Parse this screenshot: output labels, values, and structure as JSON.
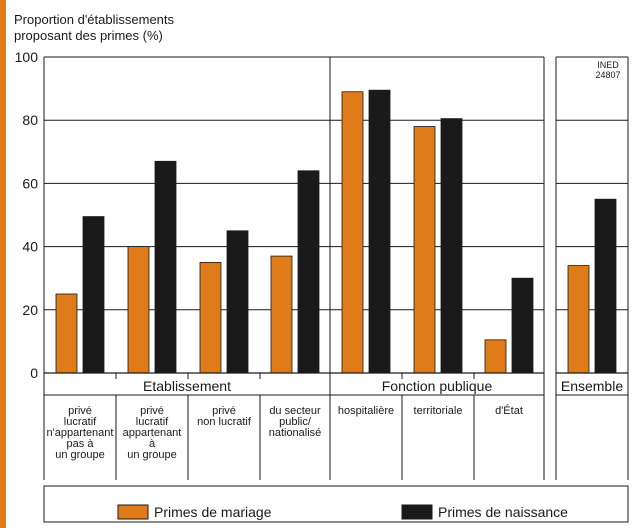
{
  "chart_data": {
    "type": "bar",
    "ylabel_lines": [
      "Proportion d'établissements",
      "proposant des primes (%)"
    ],
    "source_note_lines": [
      "INED",
      "24807"
    ],
    "ylim": [
      0,
      100
    ],
    "yticks": [
      0,
      20,
      40,
      60,
      80,
      100
    ],
    "grid": true,
    "colors": {
      "Primes de mariage": "#e07b1a",
      "Primes de naissance": "#1a1a1a"
    },
    "groups": [
      {
        "label": "Etablissement",
        "first": 0,
        "last": 3
      },
      {
        "label": "Fonction publique",
        "first": 4,
        "last": 6
      },
      {
        "label": "Ensemble",
        "first": 7,
        "last": 7
      }
    ],
    "categories": [
      [
        "privé",
        "lucratif",
        "n'appartenant",
        "pas à",
        "un groupe"
      ],
      [
        "privé",
        "lucratif",
        "appartenant",
        "à",
        "un groupe"
      ],
      [
        "privé",
        "non lucratif"
      ],
      [
        "du secteur",
        "public/",
        "nationalisé"
      ],
      [
        "hospitalière"
      ],
      [
        "territoriale"
      ],
      [
        "d'État"
      ],
      []
    ],
    "series": [
      {
        "name": "Primes de mariage",
        "values": [
          25,
          40,
          35,
          37,
          89,
          78,
          10.5,
          34
        ]
      },
      {
        "name": "Primes de naissance",
        "values": [
          49.5,
          67,
          45,
          64,
          89.5,
          80.5,
          30,
          55
        ]
      }
    ],
    "legend": "bottom"
  }
}
